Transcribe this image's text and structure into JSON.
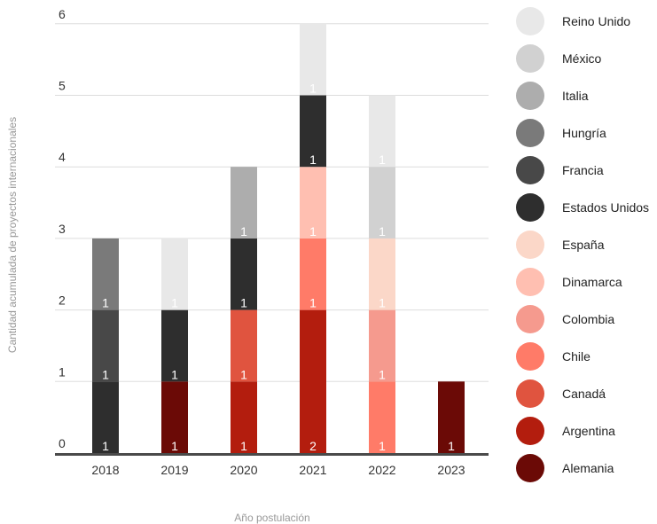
{
  "chart_data": {
    "type": "bar",
    "stacked": true,
    "xlabel": "Año postulación",
    "ylabel": "Cantidad acumulada de proyectos internacionales",
    "ylim": [
      0,
      6
    ],
    "yticks": [
      "0",
      "1",
      "2",
      "3",
      "4",
      "5",
      "6"
    ],
    "categories": [
      "2018",
      "2019",
      "2020",
      "2021",
      "2022",
      "2023"
    ],
    "grid": true,
    "legend_position": "right",
    "series": [
      {
        "name": "Alemania",
        "color": "#6b0a06",
        "values": [
          0,
          1,
          0,
          0,
          0,
          1
        ]
      },
      {
        "name": "Argentina",
        "color": "#b31d0e",
        "values": [
          0,
          0,
          1,
          2,
          0,
          0
        ]
      },
      {
        "name": "Canadá",
        "color": "#e0543f",
        "values": [
          0,
          0,
          1,
          0,
          0,
          0
        ]
      },
      {
        "name": "Chile",
        "color": "#ff7b68",
        "values": [
          0,
          0,
          0,
          1,
          1,
          0
        ]
      },
      {
        "name": "Colombia",
        "color": "#f59a8e",
        "values": [
          0,
          0,
          0,
          0,
          1,
          0
        ]
      },
      {
        "name": "Dinamarca",
        "color": "#ffbfb1",
        "values": [
          0,
          0,
          0,
          1,
          0,
          0
        ]
      },
      {
        "name": "España",
        "color": "#fbd7c8",
        "values": [
          0,
          0,
          0,
          0,
          1,
          0
        ]
      },
      {
        "name": "Estados Unidos",
        "color": "#2e2e2e",
        "values": [
          1,
          1,
          1,
          1,
          0,
          0
        ]
      },
      {
        "name": "Francia",
        "color": "#484848",
        "values": [
          1,
          0,
          0,
          0,
          0,
          0
        ]
      },
      {
        "name": "Hungría",
        "color": "#7a7a7a",
        "values": [
          1,
          0,
          0,
          0,
          0,
          0
        ]
      },
      {
        "name": "Italia",
        "color": "#adadad",
        "values": [
          0,
          0,
          1,
          0,
          0,
          0
        ]
      },
      {
        "name": "México",
        "color": "#d1d1d1",
        "values": [
          0,
          0,
          0,
          0,
          1,
          0
        ]
      },
      {
        "name": "Reino Unido",
        "color": "#e8e8e8",
        "values": [
          0,
          1,
          0,
          1,
          1,
          0
        ]
      }
    ],
    "legend_order": [
      "Reino Unido",
      "México",
      "Italia",
      "Hungría",
      "Francia",
      "Estados Unidos",
      "España",
      "Dinamarca",
      "Colombia",
      "Chile",
      "Canadá",
      "Argentina",
      "Alemania"
    ]
  }
}
